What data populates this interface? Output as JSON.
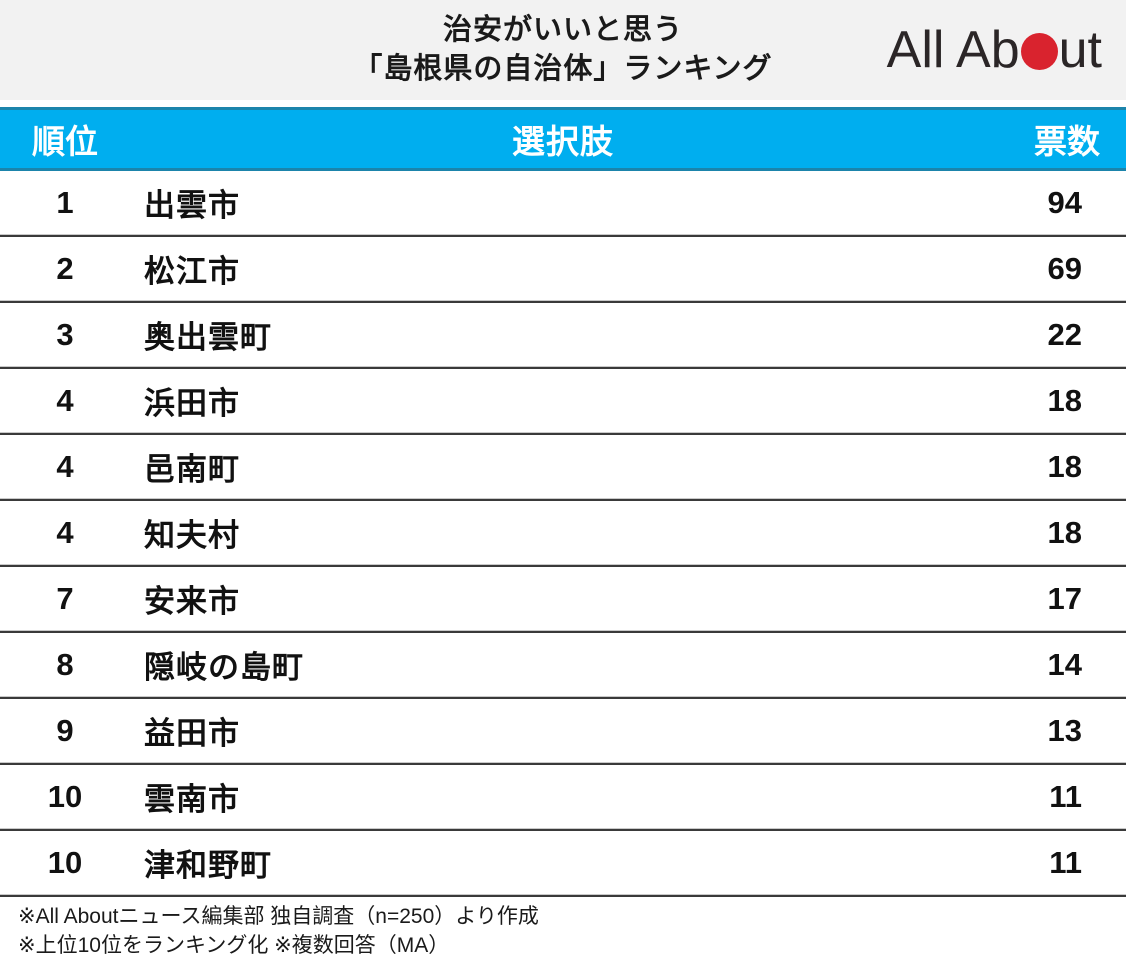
{
  "title": {
    "line1": "治安がいいと思う",
    "line2": "「島根県の自治体」ランキング"
  },
  "logo": {
    "text_before_dot": "All Ab",
    "text_after_dot": "ut",
    "dot_color": "#d9232e"
  },
  "colors": {
    "header_bg": "#00aeef",
    "header_border": "#1b84ab",
    "title_band_bg": "#f2f2f2",
    "logo_red": "#d9232e",
    "divider_dark": "#3a3a3a",
    "divider_light": "#c9c9c9"
  },
  "chart_data": {
    "type": "table",
    "title": "治安がいいと思う「島根県の自治体」ランキング",
    "columns": [
      "順位",
      "選択肢",
      "票数"
    ],
    "rows": [
      {
        "rank": "1",
        "choice": "出雲市",
        "votes": 94
      },
      {
        "rank": "2",
        "choice": "松江市",
        "votes": 69
      },
      {
        "rank": "3",
        "choice": "奥出雲町",
        "votes": 22
      },
      {
        "rank": "4",
        "choice": "浜田市",
        "votes": 18
      },
      {
        "rank": "4",
        "choice": "邑南町",
        "votes": 18
      },
      {
        "rank": "4",
        "choice": "知夫村",
        "votes": 18
      },
      {
        "rank": "7",
        "choice": "安来市",
        "votes": 17
      },
      {
        "rank": "8",
        "choice": "隠岐の島町",
        "votes": 14
      },
      {
        "rank": "9",
        "choice": "益田市",
        "votes": 13
      },
      {
        "rank": "10",
        "choice": "雲南市",
        "votes": 11
      },
      {
        "rank": "10",
        "choice": "津和野町",
        "votes": 11
      }
    ]
  },
  "footnotes": [
    "※All Aboutニュース編集部 独自調査（n=250）より作成",
    "※上位10位をランキング化 ※複数回答（MA）"
  ]
}
